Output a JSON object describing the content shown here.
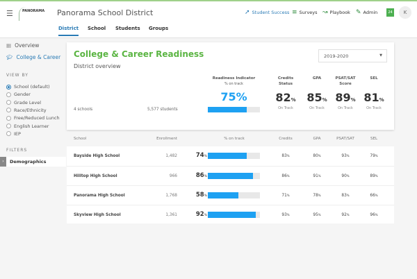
{
  "header": {
    "title": "Panorama School District",
    "logo": "PANORAMA",
    "nav": [
      {
        "label": "Student Success",
        "icon": "pin-icon"
      },
      {
        "label": "Surveys",
        "icon": "list-icon"
      },
      {
        "label": "Playbook",
        "icon": "playbook-icon"
      },
      {
        "label": "Admin",
        "icon": "pencil-icon"
      }
    ],
    "badge": "24",
    "avatar": "K"
  },
  "tabs": [
    "District",
    "School",
    "Students",
    "Groups"
  ],
  "sidebar": {
    "overview": "Overview",
    "college": "College & Career",
    "view_by": "VIEW BY",
    "options": [
      "School (default)",
      "Gender",
      "Grade Level",
      "Race/Ethnicity",
      "Free/Reduced Lunch",
      "English Learner",
      "IEP"
    ],
    "selected": 0,
    "filters": "FILTERS",
    "demographics": "Demographics"
  },
  "card": {
    "title": "College & Career Readiness",
    "subtitle": "District overview",
    "year": "2019-2020",
    "schools": "4 schools",
    "students": "5,577 students",
    "readiness": {
      "label": "Readiness Indicator",
      "sub": "% on track",
      "value": "75%",
      "pct": 75
    },
    "metrics": [
      {
        "label": "Credits Status",
        "value": "82",
        "unit": "%",
        "note": "On Track"
      },
      {
        "label": "GPA",
        "value": "85",
        "unit": "%",
        "note": "On Track"
      },
      {
        "label": "PSAT/SAT Score",
        "value": "89",
        "unit": "%",
        "note": "On Track"
      },
      {
        "label": "SEL",
        "value": "81",
        "unit": "%",
        "note": "On Track"
      }
    ]
  },
  "table": {
    "headers": [
      "School",
      "Enrollment",
      "% on track",
      "Credits",
      "GPA",
      "PSAT/SAT",
      "SEL"
    ],
    "rows": [
      {
        "school": "Bayside High School",
        "enrollment": "1,482",
        "on_track": 74,
        "credits": "83",
        "gpa": "80",
        "psat": "93",
        "sel": "79"
      },
      {
        "school": "Hilltop High School",
        "enrollment": "966",
        "on_track": 86,
        "credits": "86",
        "gpa": "91",
        "psat": "90",
        "sel": "89"
      },
      {
        "school": "Panorama High School",
        "enrollment": "1,768",
        "on_track": 58,
        "credits": "71",
        "gpa": "78",
        "psat": "83",
        "sel": "66"
      },
      {
        "school": "Skyview High School",
        "enrollment": "1,361",
        "on_track": 92,
        "credits": "93",
        "gpa": "95",
        "psat": "92",
        "sel": "96"
      }
    ]
  },
  "colors": {
    "accent": "#2a7bb5",
    "bar": "#1ea1f2",
    "title": "#5bb543"
  }
}
